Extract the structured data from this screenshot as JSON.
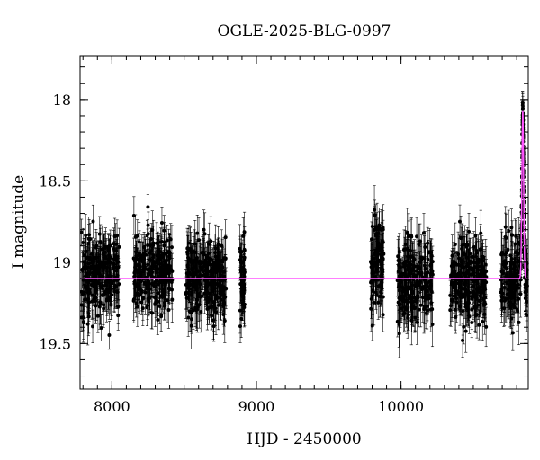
{
  "chart_data": {
    "type": "scatter",
    "title": "OGLE-2025-BLG-0997",
    "xlabel": "HJD - 2450000",
    "ylabel": "I magnitude",
    "xlim": [
      7780,
      10880
    ],
    "ylim": [
      19.78,
      17.73
    ],
    "y_inverted": true,
    "grid": false,
    "legend": "none",
    "x_ticks": [
      {
        "value": 8000,
        "label": "8000"
      },
      {
        "value": 9000,
        "label": "9000"
      },
      {
        "value": 10000,
        "label": "10000"
      }
    ],
    "y_ticks": [
      {
        "value": 18,
        "label": "18"
      },
      {
        "value": 18.5,
        "label": "18.5"
      },
      {
        "value": 19,
        "label": "19"
      },
      {
        "value": 19.5,
        "label": "19.5"
      }
    ],
    "x_minor_step": 100,
    "y_minor_step": 0.1,
    "baseline_mag": 19.1,
    "observing_seasons": [
      {
        "start": 7790,
        "end": 8050,
        "mean": 19.08,
        "scatter": 0.13,
        "err": 0.11
      },
      {
        "start": 8150,
        "end": 8420,
        "mean": 19.08,
        "scatter": 0.12,
        "err": 0.11
      },
      {
        "start": 8510,
        "end": 8790,
        "mean": 19.1,
        "scatter": 0.12,
        "err": 0.12
      },
      {
        "start": 8885,
        "end": 8920,
        "mean": 19.1,
        "scatter": 0.12,
        "err": 0.12
      },
      {
        "start": 9790,
        "end": 9880,
        "mean": 19.0,
        "scatter": 0.14,
        "err": 0.12
      },
      {
        "start": 9975,
        "end": 10220,
        "mean": 19.13,
        "scatter": 0.12,
        "err": 0.12
      },
      {
        "start": 10340,
        "end": 10590,
        "mean": 19.12,
        "scatter": 0.12,
        "err": 0.12
      },
      {
        "start": 10690,
        "end": 10880,
        "mean": 19.1,
        "scatter": 0.12,
        "err": 0.12
      }
    ],
    "event": {
      "t0": 10842,
      "peak_mag": 18.07,
      "tE": 6
    },
    "series": [
      {
        "kind": "data",
        "color": "#000000"
      },
      {
        "kind": "model",
        "color": "#ff55ff"
      }
    ]
  }
}
